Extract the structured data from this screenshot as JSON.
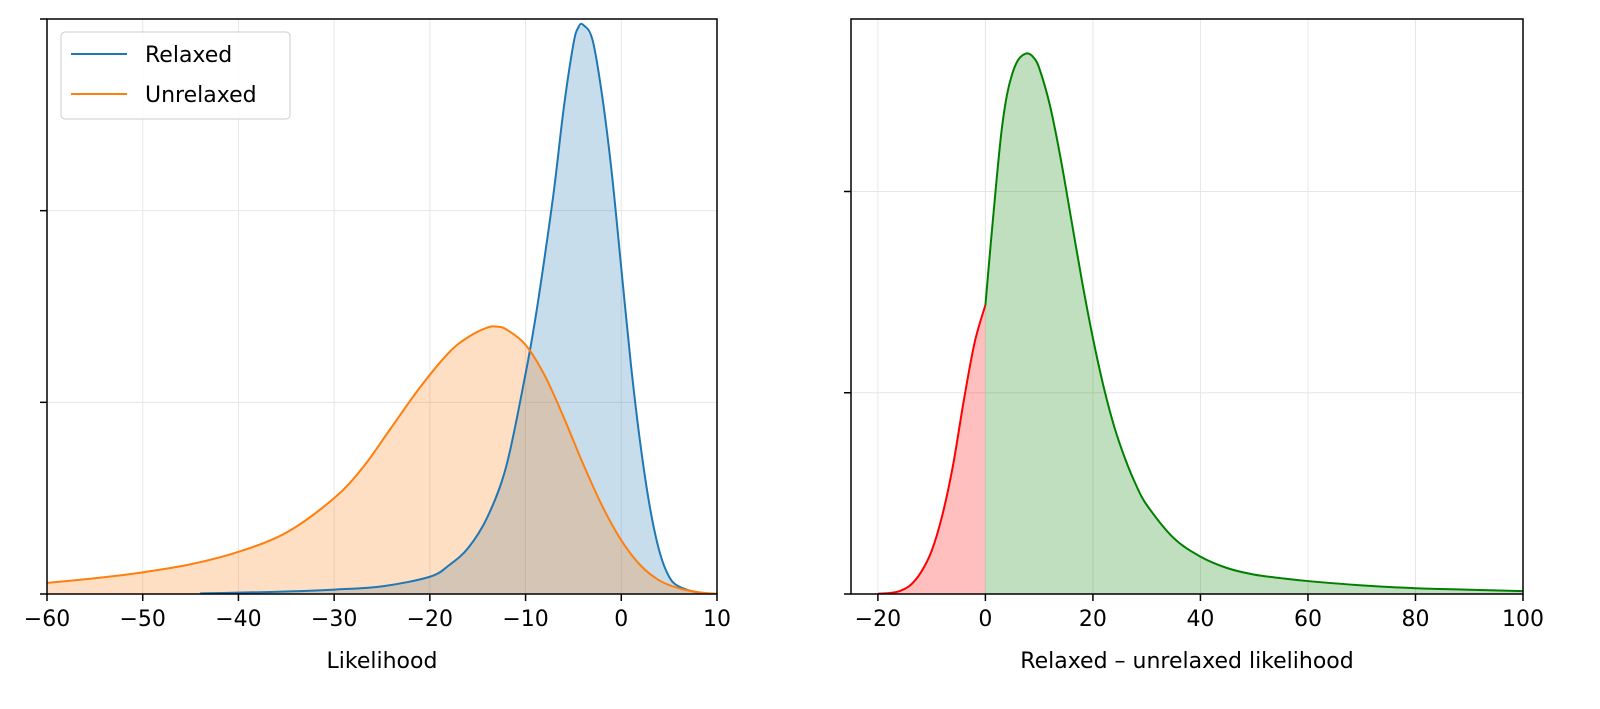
{
  "chart_data": [
    {
      "type": "area",
      "xlabel": "Likelihood",
      "ylabel": "",
      "xlim": [
        -60,
        10
      ],
      "ylim": [
        0,
        0.3
      ],
      "xticks": [
        "−60",
        "−50",
        "−40",
        "−30",
        "−20",
        "−10",
        "0",
        "10"
      ],
      "xtick_values": [
        -60,
        -50,
        -40,
        -30,
        -20,
        -10,
        0,
        10
      ],
      "ytick_values": [
        0,
        0.1,
        0.2,
        0.3
      ],
      "grid": true,
      "legend": {
        "placement": "top-left"
      },
      "series": [
        {
          "name": "Relaxed",
          "color": "#1f77b4",
          "fill": "#1f77b4",
          "x": [
            -44,
            -40,
            -35,
            -30,
            -25,
            -20,
            -18,
            -16,
            -14,
            -12,
            -10,
            -9,
            -8,
            -7,
            -6,
            -5,
            -4.5,
            -4,
            -3,
            -2,
            -1,
            0,
            1,
            2,
            3,
            4,
            5,
            6,
            8,
            10
          ],
          "y": [
            0.0003,
            0.0007,
            0.0013,
            0.0023,
            0.004,
            0.009,
            0.015,
            0.024,
            0.04,
            0.067,
            0.115,
            0.143,
            0.176,
            0.212,
            0.254,
            0.287,
            0.2955,
            0.297,
            0.289,
            0.26,
            0.22,
            0.17,
            0.12,
            0.078,
            0.045,
            0.022,
            0.009,
            0.004,
            0.0008,
            0
          ]
        },
        {
          "name": "Unrelaxed",
          "color": "#ff7f0e",
          "fill": "#ff7f0e",
          "x": [
            -60,
            -55,
            -50,
            -45,
            -40,
            -35,
            -30,
            -27,
            -24,
            -21,
            -18,
            -16,
            -14,
            -13,
            -12,
            -10,
            -8,
            -6,
            -4,
            -2,
            0,
            2,
            4,
            6,
            8,
            10
          ],
          "y": [
            0.0058,
            0.0082,
            0.0113,
            0.0155,
            0.022,
            0.032,
            0.05,
            0.066,
            0.087,
            0.108,
            0.126,
            0.134,
            0.139,
            0.1395,
            0.138,
            0.13,
            0.114,
            0.092,
            0.068,
            0.046,
            0.028,
            0.015,
            0.007,
            0.003,
            0.001,
            0.0001
          ]
        }
      ]
    },
    {
      "type": "area",
      "xlabel": "Relaxed – unrelaxed likelihood",
      "ylabel": "",
      "xlim": [
        -25,
        100
      ],
      "ylim": [
        0,
        0.04
      ],
      "xticks": [
        "−20",
        "0",
        "20",
        "40",
        "60",
        "80",
        "100"
      ],
      "xtick_values": [
        -20,
        0,
        20,
        40,
        60,
        80,
        100
      ],
      "ytick_values": [
        0,
        0.014,
        0.028,
        0.042
      ],
      "grid": true,
      "legend": null,
      "series": [
        {
          "color": "#ff0000",
          "fill": "#ff0000",
          "x": [
            -20,
            -18,
            -16,
            -14,
            -12,
            -10,
            -8,
            -6,
            -4,
            -2,
            0
          ],
          "y": [
            2e-05,
            6e-05,
            0.0002,
            0.0006,
            0.0015,
            0.003,
            0.0055,
            0.009,
            0.0135,
            0.0175,
            0.0201
          ]
        },
        {
          "color": "#008000",
          "fill": "#008000",
          "x": [
            0,
            1,
            2,
            3,
            4,
            5,
            6,
            7,
            8,
            9,
            10,
            12,
            14,
            16,
            18,
            20,
            22,
            24,
            26,
            28,
            30,
            35,
            40,
            45,
            50,
            55,
            60,
            70,
            80,
            90,
            100
          ],
          "y": [
            0.0201,
            0.0244,
            0.0285,
            0.0322,
            0.0347,
            0.0362,
            0.0371,
            0.0375,
            0.0376,
            0.0373,
            0.0366,
            0.034,
            0.0303,
            0.026,
            0.0217,
            0.0178,
            0.0144,
            0.0116,
            0.0094,
            0.0076,
            0.0062,
            0.0039,
            0.0026,
            0.0018,
            0.00135,
            0.0011,
            0.0009,
            0.0006,
            0.0004,
            0.0003,
            0.0002
          ]
        }
      ]
    }
  ]
}
